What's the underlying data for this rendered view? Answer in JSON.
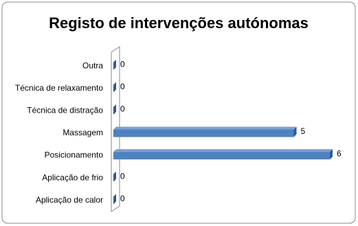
{
  "chart_data": {
    "type": "bar",
    "orientation": "horizontal",
    "title": "Registo de intervenções autónomas",
    "categories": [
      "Outra",
      "Técnica de relaxamento",
      "Técnica de distração",
      "Massagem",
      "Posicionamento",
      "Aplicação de frio",
      "Aplicação de calor"
    ],
    "values": [
      0,
      0,
      0,
      5,
      6,
      0,
      0
    ],
    "color": "#4f81bd",
    "xlim": [
      0,
      6
    ]
  }
}
